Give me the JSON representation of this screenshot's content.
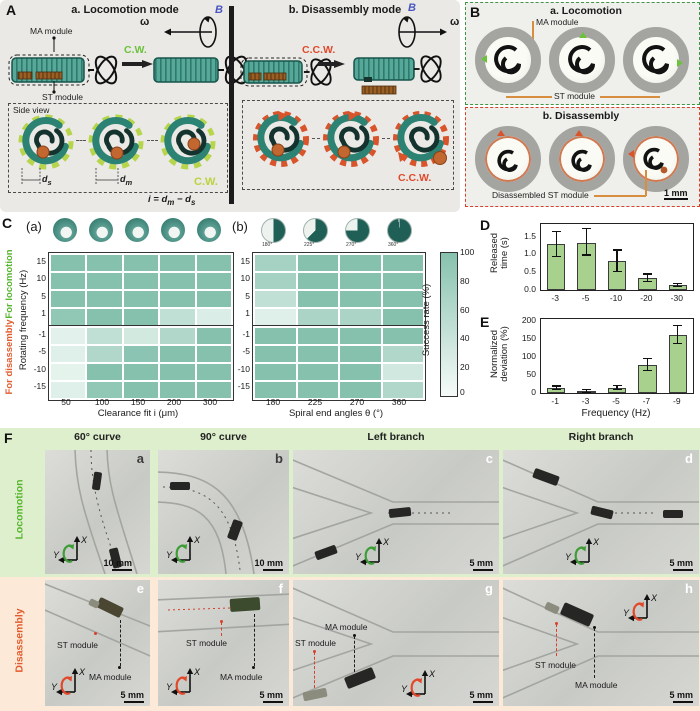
{
  "colors": {
    "heat_full": "#86c1ae",
    "heat_empty": "#eff8f4",
    "green_accent": "#56b42e",
    "red_accent": "#e1492a",
    "blue_field": "#4a55c0",
    "bar_fill": "#a9d18e",
    "locomotion_bg": "#ddefcc",
    "disassembly_bg": "#fce9d8"
  },
  "panel_a": {
    "label": "A",
    "locomotion": {
      "title": "a. Locomotion mode",
      "field": "B",
      "omega": "ω",
      "direction": "C.W.",
      "ma": "MA module",
      "st": "ST module",
      "side_view": "Side view",
      "corner": "C.W."
    },
    "disassembly": {
      "title": "b. Disassembly mode",
      "field": "B",
      "omega": "ω",
      "direction": "C.C.W.",
      "corner": "C.C.W."
    },
    "measures": {
      "d1": "d",
      "d1_sub": "s",
      "d2": "d",
      "d2_sub": "m"
    },
    "eq": {
      "p1": "i = d",
      "s1": "m",
      "p2": " − d",
      "s2": "s"
    }
  },
  "panel_b": {
    "label": "B",
    "locomotion": {
      "title": "a. Locomotion",
      "ma": "MA module",
      "st": "ST module"
    },
    "disassembly": {
      "title": "b. Disassembly",
      "caption": "Disassembled ST module",
      "scale": "1 mm"
    }
  },
  "panel_c": {
    "label": "C",
    "sub_a": "(a)",
    "sub_b": "(b)",
    "left_axis_top": "For locomotion",
    "left_axis_bottom": "For disassembly",
    "y_axis": "Rotating frequency (Hz)",
    "icon_labels": [
      "180°",
      "225°",
      "270°",
      "360°"
    ],
    "colorbar": {
      "label": "Success rate (%)",
      "ticks": [
        "100",
        "80",
        "60",
        "40",
        "20",
        "0"
      ]
    }
  },
  "panel_d": {
    "label": "D"
  },
  "panel_e": {
    "label": "E"
  },
  "panel_f": {
    "label": "F",
    "columns": [
      "60° curve",
      "90° curve",
      "Left branch",
      "Right branch"
    ],
    "rows": [
      "Locomotion",
      "Disassembly"
    ],
    "axis": {
      "x": "X",
      "y": "Y"
    },
    "photos": [
      {
        "letter": "a",
        "scale": "10 mm"
      },
      {
        "letter": "b",
        "scale": "10 mm"
      },
      {
        "letter": "c",
        "scale": "5 mm"
      },
      {
        "letter": "d",
        "scale": "5 mm"
      },
      {
        "letter": "e",
        "scale": "5 mm",
        "st": "ST module",
        "ma": "MA module"
      },
      {
        "letter": "f",
        "scale": "5 mm",
        "st": "ST module",
        "ma": "MA module"
      },
      {
        "letter": "g",
        "scale": "5 mm",
        "st": "ST module",
        "ma": "MA module"
      },
      {
        "letter": "h",
        "scale": "5 mm",
        "st": "ST module",
        "ma": "MA module"
      }
    ]
  },
  "chart_data": [
    {
      "id": "success_rate_clearance",
      "type": "heatmap",
      "title": "(a)",
      "xlabel": "Clearance fit i (μm)",
      "x_ticks": [
        "50",
        "100",
        "150",
        "200",
        "300"
      ],
      "legend": "Success rate (%)",
      "value_range": [
        0,
        100
      ],
      "row_groups": [
        {
          "group": "For locomotion",
          "rows": [
            "15",
            "10",
            "5",
            "1"
          ],
          "values": [
            [
              100,
              100,
              100,
              100,
              100
            ],
            [
              100,
              100,
              100,
              100,
              100
            ],
            [
              100,
              100,
              100,
              100,
              100
            ],
            [
              90,
              100,
              100,
              45,
              20
            ]
          ]
        },
        {
          "group": "For disassembly",
          "rows": [
            "-1",
            "-5",
            "-10",
            "-15"
          ],
          "values": [
            [
              12,
              45,
              28,
              60,
              100
            ],
            [
              15,
              60,
              95,
              100,
              100
            ],
            [
              10,
              100,
              100,
              100,
              100
            ],
            [
              15,
              90,
              100,
              100,
              100
            ]
          ]
        }
      ]
    },
    {
      "id": "success_rate_spiral_angle",
      "type": "heatmap",
      "title": "(b)",
      "xlabel": "Spiral end angles θ (°)",
      "x_ticks": [
        "180",
        "225",
        "270",
        "360"
      ],
      "legend": "Success rate (%)",
      "value_range": [
        0,
        100
      ],
      "row_groups": [
        {
          "group": "For locomotion",
          "rows": [
            "15",
            "10",
            "5",
            "1"
          ],
          "values": [
            [
              70,
              100,
              100,
              100
            ],
            [
              70,
              100,
              100,
              100
            ],
            [
              45,
              100,
              100,
              100
            ],
            [
              15,
              65,
              65,
              100
            ]
          ]
        },
        {
          "group": "For disassembly",
          "rows": [
            "-1",
            "-5",
            "-10",
            "-15"
          ],
          "values": [
            [
              100,
              100,
              100,
              100
            ],
            [
              100,
              100,
              100,
              60
            ],
            [
              100,
              100,
              100,
              30
            ],
            [
              100,
              100,
              100,
              60
            ]
          ]
        }
      ]
    },
    {
      "id": "released_time",
      "type": "bar",
      "ylabel": "Released time (s)",
      "ylabel_lines": [
        "Released",
        "time (s)"
      ],
      "categories": [
        "-3",
        "-5",
        "-10",
        "-20",
        "-30"
      ],
      "values": [
        1.28,
        1.33,
        0.8,
        0.33,
        0.13
      ],
      "errors": [
        0.35,
        0.37,
        0.3,
        0.1,
        0.04
      ],
      "ytick_values": [
        0,
        0.5,
        1,
        1.5
      ],
      "ytick_labels": [
        "0.0",
        "0.5",
        "1.0",
        "1.5"
      ],
      "ylim": [
        0,
        1.85
      ]
    },
    {
      "id": "normalized_deviation",
      "type": "bar",
      "ylabel": "Normalized deviation (%)",
      "ylabel_lines": [
        "Normalized",
        "deviation (%)"
      ],
      "xlabel": "Frequency (Hz)",
      "categories": [
        "-1",
        "-3",
        "-5",
        "-7",
        "-9"
      ],
      "values": [
        13,
        3,
        13,
        77,
        160
      ],
      "errors": [
        5,
        4,
        6,
        16,
        25
      ],
      "ytick_values": [
        0,
        50,
        100,
        150,
        200
      ],
      "ytick_labels": [
        "0",
        "50",
        "100",
        "150",
        "200"
      ],
      "ylim": [
        0,
        205
      ]
    }
  ]
}
